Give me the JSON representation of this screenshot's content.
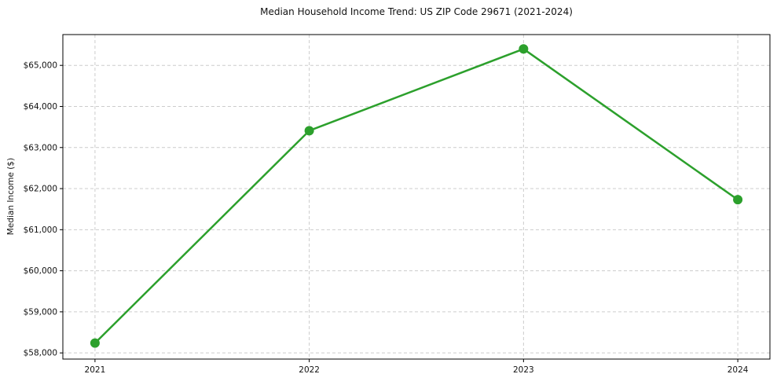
{
  "chart_data": {
    "type": "line",
    "title": "Median Household Income Trend: US ZIP Code 29671 (2021-2024)",
    "xlabel": "",
    "ylabel": "Median Income ($)",
    "categories": [
      "2021",
      "2022",
      "2023",
      "2024"
    ],
    "series": [
      {
        "name": "Median Household Income",
        "values": [
          58240,
          63410,
          65400,
          61730
        ],
        "color": "#2ca02c",
        "marker": "circle",
        "line_width": 2.5,
        "marker_radius": 6
      }
    ],
    "y_ticks": [
      {
        "value": 58000,
        "label": "$58,000"
      },
      {
        "value": 59000,
        "label": "$59,000"
      },
      {
        "value": 60000,
        "label": "$60,000"
      },
      {
        "value": 61000,
        "label": "$61,000"
      },
      {
        "value": 62000,
        "label": "$62,000"
      },
      {
        "value": 63000,
        "label": "$63,000"
      },
      {
        "value": 64000,
        "label": "$64,000"
      },
      {
        "value": 65000,
        "label": "$65,000"
      }
    ],
    "ylim": [
      57850,
      65750
    ],
    "grid": {
      "visible": true,
      "style": "dashed",
      "color": "#cccccc"
    },
    "legend": "none",
    "background": "#ffffff"
  }
}
